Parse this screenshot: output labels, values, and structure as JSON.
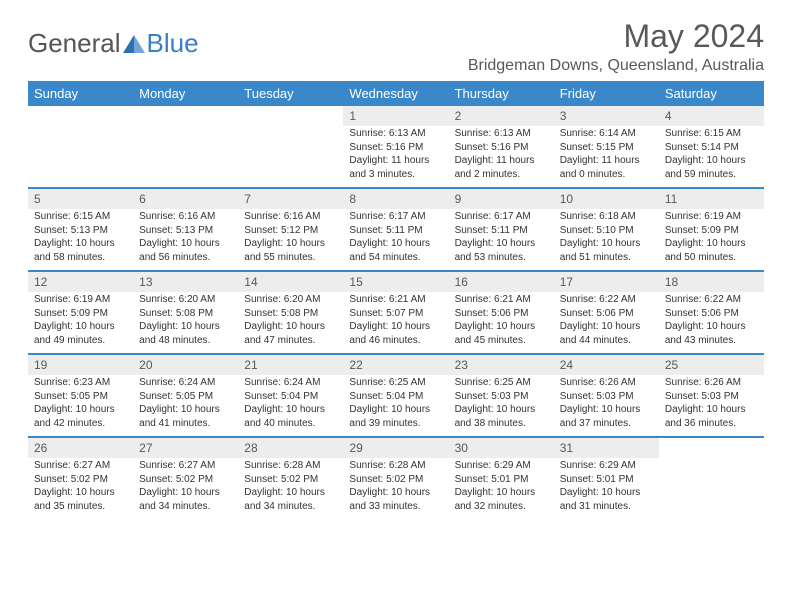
{
  "brand": {
    "general": "General",
    "blue": "Blue"
  },
  "title": "May 2024",
  "location": "Bridgeman Downs, Queensland, Australia",
  "colors": {
    "header_bg": "#3a87c9",
    "header_text": "#ffffff",
    "daynum_bg": "#ededed",
    "body_text": "#333333",
    "title_text": "#595959",
    "logo_gray": "#555555",
    "logo_blue": "#3a7fc4"
  },
  "weekdays": [
    "Sunday",
    "Monday",
    "Tuesday",
    "Wednesday",
    "Thursday",
    "Friday",
    "Saturday"
  ],
  "weeks": [
    [
      {
        "n": "",
        "sunrise": "",
        "sunset": "",
        "daylight": ""
      },
      {
        "n": "",
        "sunrise": "",
        "sunset": "",
        "daylight": ""
      },
      {
        "n": "",
        "sunrise": "",
        "sunset": "",
        "daylight": ""
      },
      {
        "n": "1",
        "sunrise": "Sunrise: 6:13 AM",
        "sunset": "Sunset: 5:16 PM",
        "daylight": "Daylight: 11 hours and 3 minutes."
      },
      {
        "n": "2",
        "sunrise": "Sunrise: 6:13 AM",
        "sunset": "Sunset: 5:16 PM",
        "daylight": "Daylight: 11 hours and 2 minutes."
      },
      {
        "n": "3",
        "sunrise": "Sunrise: 6:14 AM",
        "sunset": "Sunset: 5:15 PM",
        "daylight": "Daylight: 11 hours and 0 minutes."
      },
      {
        "n": "4",
        "sunrise": "Sunrise: 6:15 AM",
        "sunset": "Sunset: 5:14 PM",
        "daylight": "Daylight: 10 hours and 59 minutes."
      }
    ],
    [
      {
        "n": "5",
        "sunrise": "Sunrise: 6:15 AM",
        "sunset": "Sunset: 5:13 PM",
        "daylight": "Daylight: 10 hours and 58 minutes."
      },
      {
        "n": "6",
        "sunrise": "Sunrise: 6:16 AM",
        "sunset": "Sunset: 5:13 PM",
        "daylight": "Daylight: 10 hours and 56 minutes."
      },
      {
        "n": "7",
        "sunrise": "Sunrise: 6:16 AM",
        "sunset": "Sunset: 5:12 PM",
        "daylight": "Daylight: 10 hours and 55 minutes."
      },
      {
        "n": "8",
        "sunrise": "Sunrise: 6:17 AM",
        "sunset": "Sunset: 5:11 PM",
        "daylight": "Daylight: 10 hours and 54 minutes."
      },
      {
        "n": "9",
        "sunrise": "Sunrise: 6:17 AM",
        "sunset": "Sunset: 5:11 PM",
        "daylight": "Daylight: 10 hours and 53 minutes."
      },
      {
        "n": "10",
        "sunrise": "Sunrise: 6:18 AM",
        "sunset": "Sunset: 5:10 PM",
        "daylight": "Daylight: 10 hours and 51 minutes."
      },
      {
        "n": "11",
        "sunrise": "Sunrise: 6:19 AM",
        "sunset": "Sunset: 5:09 PM",
        "daylight": "Daylight: 10 hours and 50 minutes."
      }
    ],
    [
      {
        "n": "12",
        "sunrise": "Sunrise: 6:19 AM",
        "sunset": "Sunset: 5:09 PM",
        "daylight": "Daylight: 10 hours and 49 minutes."
      },
      {
        "n": "13",
        "sunrise": "Sunrise: 6:20 AM",
        "sunset": "Sunset: 5:08 PM",
        "daylight": "Daylight: 10 hours and 48 minutes."
      },
      {
        "n": "14",
        "sunrise": "Sunrise: 6:20 AM",
        "sunset": "Sunset: 5:08 PM",
        "daylight": "Daylight: 10 hours and 47 minutes."
      },
      {
        "n": "15",
        "sunrise": "Sunrise: 6:21 AM",
        "sunset": "Sunset: 5:07 PM",
        "daylight": "Daylight: 10 hours and 46 minutes."
      },
      {
        "n": "16",
        "sunrise": "Sunrise: 6:21 AM",
        "sunset": "Sunset: 5:06 PM",
        "daylight": "Daylight: 10 hours and 45 minutes."
      },
      {
        "n": "17",
        "sunrise": "Sunrise: 6:22 AM",
        "sunset": "Sunset: 5:06 PM",
        "daylight": "Daylight: 10 hours and 44 minutes."
      },
      {
        "n": "18",
        "sunrise": "Sunrise: 6:22 AM",
        "sunset": "Sunset: 5:06 PM",
        "daylight": "Daylight: 10 hours and 43 minutes."
      }
    ],
    [
      {
        "n": "19",
        "sunrise": "Sunrise: 6:23 AM",
        "sunset": "Sunset: 5:05 PM",
        "daylight": "Daylight: 10 hours and 42 minutes."
      },
      {
        "n": "20",
        "sunrise": "Sunrise: 6:24 AM",
        "sunset": "Sunset: 5:05 PM",
        "daylight": "Daylight: 10 hours and 41 minutes."
      },
      {
        "n": "21",
        "sunrise": "Sunrise: 6:24 AM",
        "sunset": "Sunset: 5:04 PM",
        "daylight": "Daylight: 10 hours and 40 minutes."
      },
      {
        "n": "22",
        "sunrise": "Sunrise: 6:25 AM",
        "sunset": "Sunset: 5:04 PM",
        "daylight": "Daylight: 10 hours and 39 minutes."
      },
      {
        "n": "23",
        "sunrise": "Sunrise: 6:25 AM",
        "sunset": "Sunset: 5:03 PM",
        "daylight": "Daylight: 10 hours and 38 minutes."
      },
      {
        "n": "24",
        "sunrise": "Sunrise: 6:26 AM",
        "sunset": "Sunset: 5:03 PM",
        "daylight": "Daylight: 10 hours and 37 minutes."
      },
      {
        "n": "25",
        "sunrise": "Sunrise: 6:26 AM",
        "sunset": "Sunset: 5:03 PM",
        "daylight": "Daylight: 10 hours and 36 minutes."
      }
    ],
    [
      {
        "n": "26",
        "sunrise": "Sunrise: 6:27 AM",
        "sunset": "Sunset: 5:02 PM",
        "daylight": "Daylight: 10 hours and 35 minutes."
      },
      {
        "n": "27",
        "sunrise": "Sunrise: 6:27 AM",
        "sunset": "Sunset: 5:02 PM",
        "daylight": "Daylight: 10 hours and 34 minutes."
      },
      {
        "n": "28",
        "sunrise": "Sunrise: 6:28 AM",
        "sunset": "Sunset: 5:02 PM",
        "daylight": "Daylight: 10 hours and 34 minutes."
      },
      {
        "n": "29",
        "sunrise": "Sunrise: 6:28 AM",
        "sunset": "Sunset: 5:02 PM",
        "daylight": "Daylight: 10 hours and 33 minutes."
      },
      {
        "n": "30",
        "sunrise": "Sunrise: 6:29 AM",
        "sunset": "Sunset: 5:01 PM",
        "daylight": "Daylight: 10 hours and 32 minutes."
      },
      {
        "n": "31",
        "sunrise": "Sunrise: 6:29 AM",
        "sunset": "Sunset: 5:01 PM",
        "daylight": "Daylight: 10 hours and 31 minutes."
      },
      {
        "n": "",
        "sunrise": "",
        "sunset": "",
        "daylight": ""
      }
    ]
  ]
}
